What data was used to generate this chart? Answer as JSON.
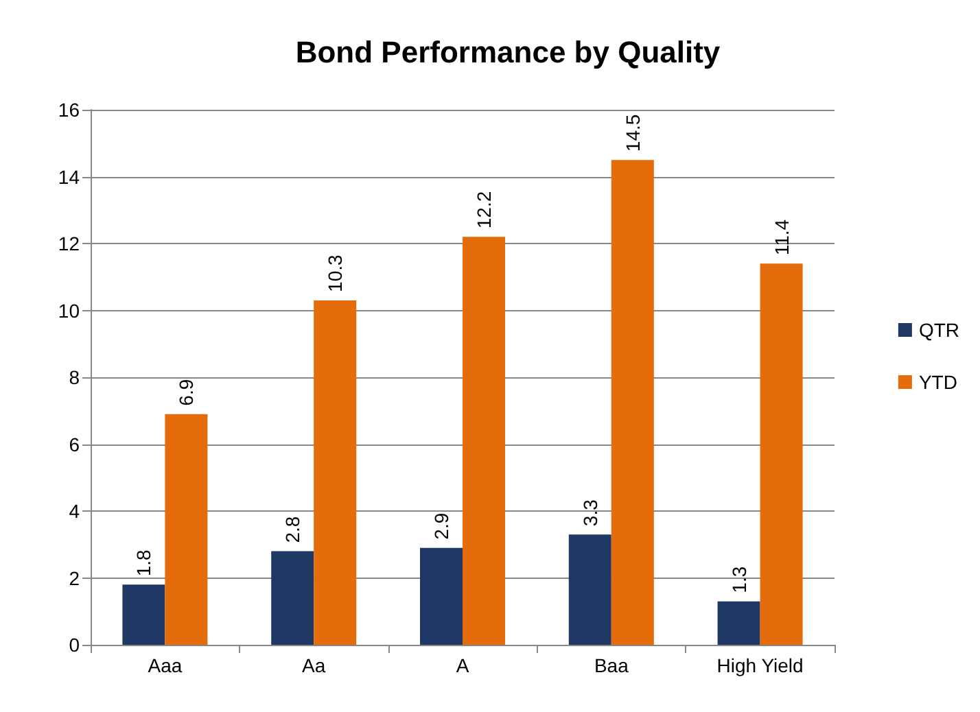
{
  "chart_data": {
    "type": "bar",
    "title": "Bond Performance by Quality",
    "categories": [
      "Aaa",
      "Aa",
      "A",
      "Baa",
      "High Yield"
    ],
    "series": [
      {
        "name": "QTR",
        "color": "#1f3864",
        "values": [
          1.8,
          2.8,
          2.9,
          3.3,
          1.3
        ]
      },
      {
        "name": "YTD",
        "color": "#e46c0a",
        "values": [
          6.9,
          10.3,
          12.2,
          14.5,
          11.4
        ]
      }
    ],
    "ylim": [
      0,
      16
    ],
    "yticks": [
      0,
      2,
      4,
      6,
      8,
      10,
      12,
      14,
      16
    ],
    "grid": "y",
    "legend": "right",
    "data_labels": true
  }
}
